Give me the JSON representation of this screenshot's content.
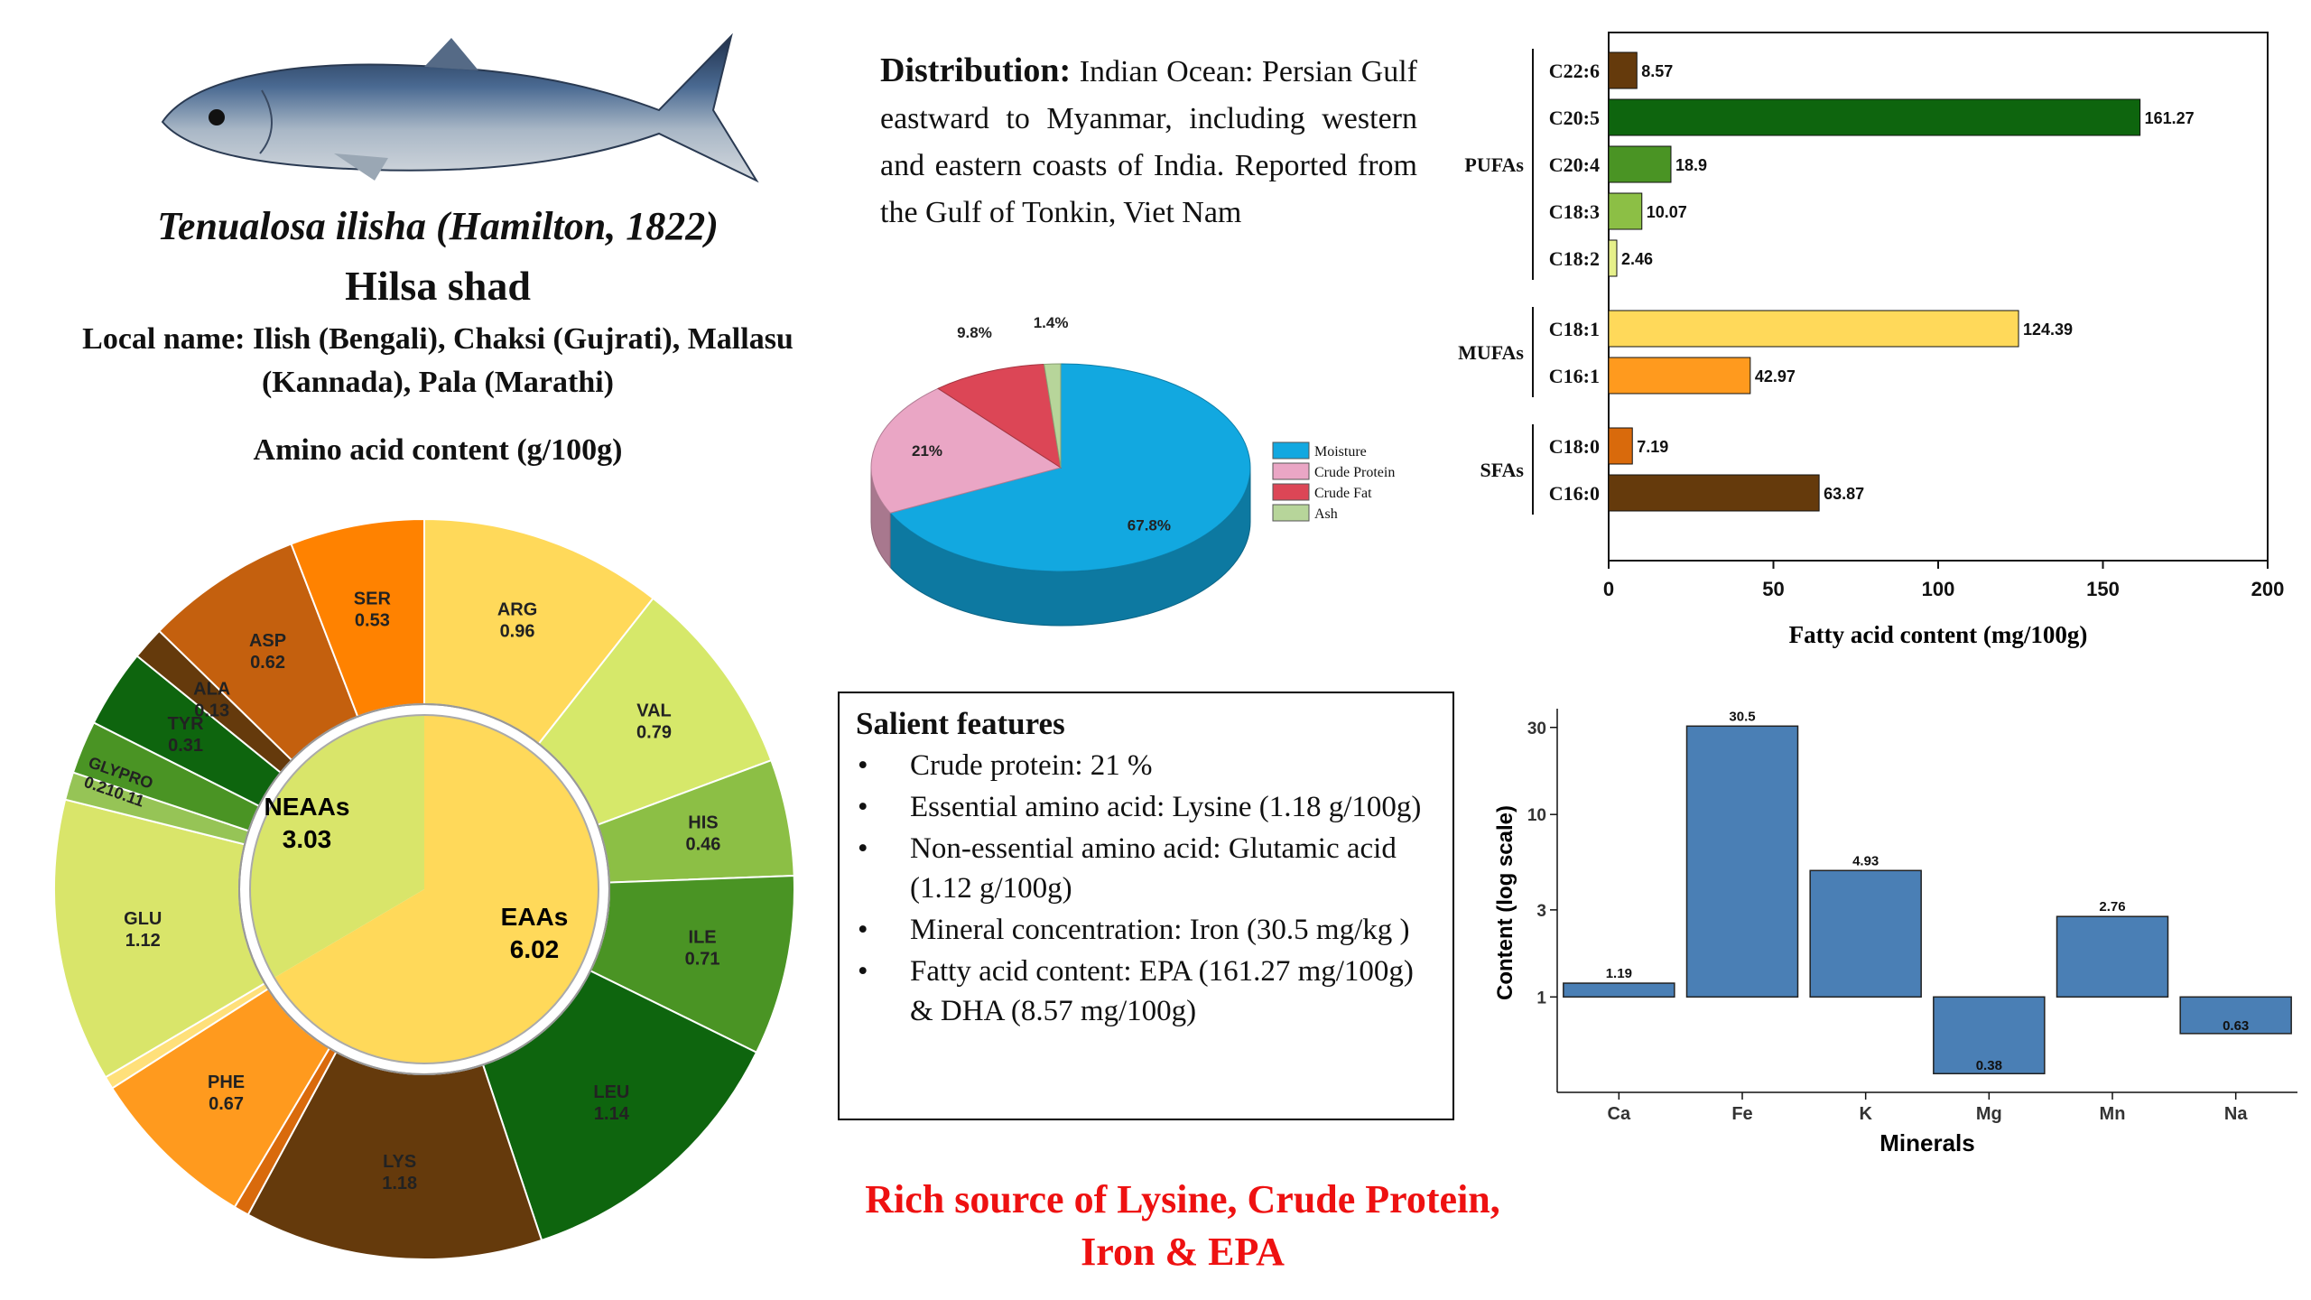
{
  "species": {
    "scientific_name": "Tenualosa ilisha (Hamilton, 1822)",
    "common_name": "Hilsa shad",
    "local_name": "Local name: Ilish (Bengali), Chaksi (Gujrati), Mallasu (Kannada), Pala (Marathi)"
  },
  "amino_title": "Amino acid content (g/100g)",
  "distribution": {
    "label": "Distribution:",
    "text": "Indian Ocean: Persian Gulf eastward to Myanmar, including western and eastern coasts of India. Reported from the Gulf of Tonkin, Viet Nam"
  },
  "salient": {
    "title": "Salient features",
    "bullet_char": "•",
    "items": [
      "Crude protein: 21 %",
      "Essential amino acid: Lysine (1.18 g/100g)",
      "Non-essential amino acid: Glutamic acid (1.12 g/100g)",
      "Mineral concentration: Iron  (30.5 mg/kg )",
      "Fatty acid content: EPA (161.27 mg/100g) & DHA (8.57 mg/100g)"
    ]
  },
  "tagline": {
    "line1": "Rich source of Lysine, Crude Protein,",
    "line2": "Iron & EPA"
  },
  "colors": {
    "tagline": "#ee1111",
    "minerals_bar": "#4a7fb5"
  },
  "icons": {
    "fish": "hilsa-fish-illustration"
  },
  "chart_data": [
    {
      "id": "amino",
      "type": "pie",
      "subtype": "sunburst",
      "inner": [
        {
          "label": "NEAAs",
          "value": 3.03,
          "color": "#d9e56a"
        },
        {
          "label": "EAAs",
          "value": 6.02,
          "color": "#ffd95a"
        }
      ],
      "outer": [
        {
          "label": "ARG",
          "value": 0.96,
          "group": "EAAs",
          "color": "#ffd95a"
        },
        {
          "label": "VAL",
          "value": 0.79,
          "group": "EAAs",
          "color": "#d6e86a"
        },
        {
          "label": "HIS",
          "value": 0.46,
          "group": "EAAs",
          "color": "#8cbf45"
        },
        {
          "label": "ILE",
          "value": 0.71,
          "group": "EAAs",
          "color": "#4a9424"
        },
        {
          "label": "LEU",
          "value": 1.14,
          "group": "EAAs",
          "color": "#0e650e"
        },
        {
          "label": "LYS",
          "value": 1.18,
          "group": "EAAs",
          "color": "#653a0c"
        },
        {
          "label": "",
          "value": 0.06,
          "group": "EAAs",
          "color": "#d96a0c"
        },
        {
          "label": "PHE",
          "value": 0.67,
          "group": "EAAs",
          "color": "#ff9a1e"
        },
        {
          "label": "",
          "value": 0.05,
          "group": "EAAs",
          "color": "#ffe07a"
        },
        {
          "label": "GLU",
          "value": 1.12,
          "group": "NEAAs",
          "color": "#d9e56a"
        },
        {
          "label": "PRO",
          "value": 0.11,
          "group": "NEAAs",
          "color": "#96c456"
        },
        {
          "label": "GLY",
          "value": 0.21,
          "group": "NEAAs",
          "color": "#4a9424"
        },
        {
          "label": "TYR",
          "value": 0.31,
          "group": "NEAAs",
          "color": "#0e650e"
        },
        {
          "label": "ALA",
          "value": 0.13,
          "group": "NEAAs",
          "color": "#653a0c"
        },
        {
          "label": "ASP",
          "value": 0.62,
          "group": "NEAAs",
          "color": "#c4600e"
        },
        {
          "label": "SER",
          "value": 0.53,
          "group": "NEAAs",
          "color": "#ff8200"
        }
      ],
      "value_labels": {
        "ARG": "0.96",
        "VAL": "0.79",
        "HIS": "0.46",
        "ILE": "0.71",
        "LEU": "1.14",
        "LYS": "1.18",
        "PHE": "0.67",
        "GLU": "1.12",
        "GLYPRO": "0.210.11",
        "TYR": "0.31",
        "ALA": "0.13",
        "ASP": "0.62",
        "SER": "0.53"
      },
      "inner_texts": {
        "neaas_label": "NEAAs",
        "neaas_value": "3.03",
        "eaas_label": "EAAs",
        "eaas_value": "6.02"
      },
      "extra_labels": {
        "glypro_name": "GLYPRO"
      }
    },
    {
      "id": "proximate",
      "type": "pie",
      "subtype": "3d",
      "slices": [
        {
          "label": "Moisture",
          "value": 67.8,
          "display": "67.8%",
          "color": "#12a8e0"
        },
        {
          "label": "Crude Protein",
          "value": 21,
          "display": "21%",
          "color": "#eaa6c5"
        },
        {
          "label": "Crude Fat",
          "value": 9.8,
          "display": "9.8%",
          "color": "#dc4656"
        },
        {
          "label": "Ash",
          "value": 1.4,
          "display": "1.4%",
          "color": "#b7d59a"
        }
      ],
      "legend_position": "right"
    },
    {
      "id": "fatty",
      "type": "bar",
      "orientation": "horizontal",
      "xlabel": "Fatty acid content (mg/100g)",
      "xlim": [
        0,
        200
      ],
      "xticks": [
        0,
        50,
        100,
        150,
        200
      ],
      "groups": [
        {
          "name": "PUFAs",
          "items": [
            {
              "label": "C22:6",
              "value": 8.57,
              "display": "8.57",
              "color": "#653a0c"
            },
            {
              "label": "C20:5",
              "value": 161.27,
              "display": "161.27",
              "color": "#0e650e"
            },
            {
              "label": "C20:4",
              "value": 18.9,
              "display": "18.9",
              "color": "#4a9424"
            },
            {
              "label": "C18:3",
              "value": 10.07,
              "display": "10.07",
              "color": "#8cbf45"
            },
            {
              "label": "C18:2",
              "value": 2.46,
              "display": "2.46",
              "color": "#e6f08a"
            }
          ]
        },
        {
          "name": "MUFAs",
          "items": [
            {
              "label": "C18:1",
              "value": 124.39,
              "display": "124.39",
              "color": "#ffd95a"
            },
            {
              "label": "C16:1",
              "value": 42.97,
              "display": "42.97",
              "color": "#ff9a1e"
            }
          ]
        },
        {
          "name": "SFAs",
          "items": [
            {
              "label": "C18:0",
              "value": 7.19,
              "display": "7.19",
              "color": "#d96a0c"
            },
            {
              "label": "C16:0",
              "value": 63.87,
              "display": "63.87",
              "color": "#653a0c"
            }
          ]
        }
      ]
    },
    {
      "id": "minerals",
      "type": "bar",
      "xlabel": "Minerals",
      "ylabel": "Content (log scale)",
      "yscale": "log",
      "yticks": [
        1,
        3,
        10,
        30
      ],
      "ylim": [
        0.3,
        38
      ],
      "categories": [
        "Ca",
        "Fe",
        "K",
        "Mg",
        "Mn",
        "Na"
      ],
      "values": [
        1.19,
        30.5,
        4.93,
        0.38,
        2.76,
        0.63
      ],
      "labels": [
        "1.19",
        "30.5",
        "4.93",
        "0.38",
        "2.76",
        "0.63"
      ],
      "baseline": 1
    }
  ]
}
